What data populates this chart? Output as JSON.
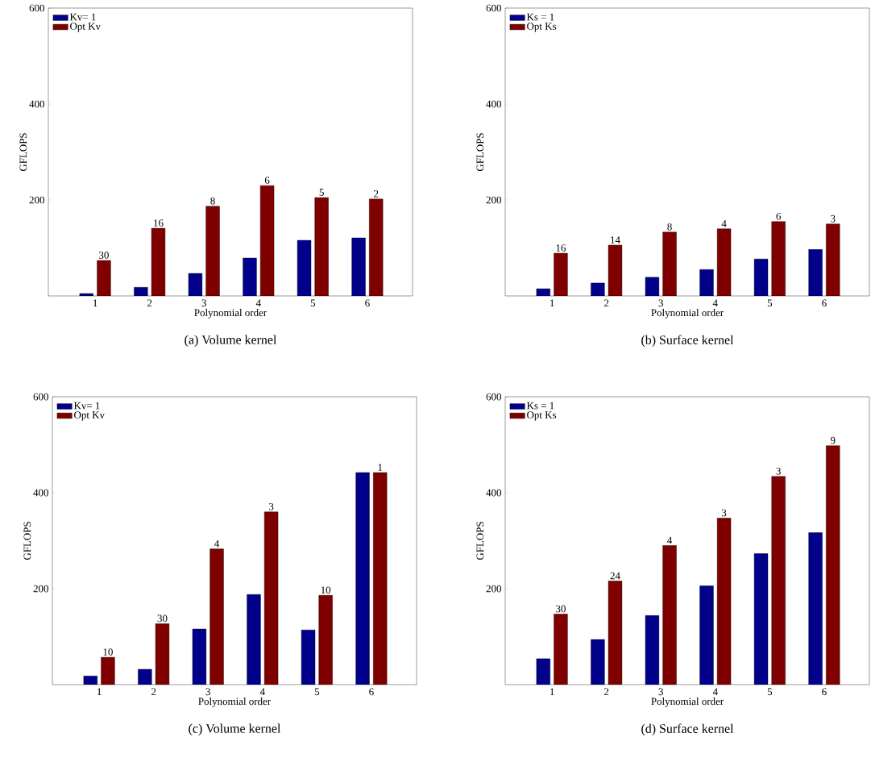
{
  "chart_data": [
    {
      "type": "bar",
      "title": "(a)  Volume kernel",
      "xlabel": "Polynomial order",
      "ylabel": "GFLOPS",
      "categories": [
        "1",
        "2",
        "3",
        "4",
        "5",
        "6"
      ],
      "ylim": [
        0,
        600
      ],
      "yticks": [
        200,
        400,
        600
      ],
      "legend": "top left",
      "series": [
        {
          "name": "Kv= 1",
          "color": "#00008b",
          "values": [
            5,
            18,
            47,
            79,
            116,
            121
          ]
        },
        {
          "name": "Opt Kv",
          "color": "#800000",
          "values": [
            74,
            141,
            187,
            230,
            205,
            202
          ]
        }
      ],
      "annotations": [
        {
          "text": "30",
          "x": "1",
          "y": 74
        },
        {
          "text": "16",
          "x": "2",
          "y": 141
        },
        {
          "text": "8",
          "x": "3",
          "y": 187
        },
        {
          "text": "6",
          "x": "4",
          "y": 230
        },
        {
          "text": "5",
          "x": "5",
          "y": 205
        },
        {
          "text": "2",
          "x": "6",
          "y": 202
        }
      ]
    },
    {
      "type": "bar",
      "title": "(b)  Surface kernel",
      "xlabel": "Polynomial order",
      "ylabel": "GFLOPS",
      "categories": [
        "1",
        "2",
        "3",
        "4",
        "5",
        "6"
      ],
      "ylim": [
        0,
        600
      ],
      "yticks": [
        200,
        400,
        600
      ],
      "legend": "top left",
      "series": [
        {
          "name": "Ks = 1",
          "color": "#00008b",
          "values": [
            15,
            27,
            39,
            55,
            77,
            97
          ]
        },
        {
          "name": "Opt Ks",
          "color": "#800000",
          "values": [
            89,
            106,
            133,
            140,
            155,
            150
          ]
        }
      ],
      "annotations": [
        {
          "text": "16",
          "x": "1",
          "y": 89
        },
        {
          "text": "14",
          "x": "2",
          "y": 106
        },
        {
          "text": "8",
          "x": "3",
          "y": 133
        },
        {
          "text": "4",
          "x": "4",
          "y": 140
        },
        {
          "text": "6",
          "x": "5",
          "y": 155
        },
        {
          "text": "3",
          "x": "6",
          "y": 150
        }
      ]
    },
    {
      "type": "bar",
      "title": "(c)  Volume kernel",
      "xlabel": "Polynomial order",
      "ylabel": "GFLOPS",
      "categories": [
        "1",
        "2",
        "3",
        "4",
        "5",
        "6"
      ],
      "ylim": [
        0,
        600
      ],
      "yticks": [
        200,
        400,
        600
      ],
      "legend": "top left",
      "series": [
        {
          "name": "Kv= 1",
          "color": "#00008b",
          "values": [
            18,
            32,
            116,
            188,
            114,
            442
          ]
        },
        {
          "name": "Opt Kv",
          "color": "#800000",
          "values": [
            57,
            127,
            283,
            360,
            186,
            442
          ]
        }
      ],
      "annotations": [
        {
          "text": "10",
          "x": "1",
          "y": 57
        },
        {
          "text": "30",
          "x": "2",
          "y": 127
        },
        {
          "text": "4",
          "x": "3",
          "y": 283
        },
        {
          "text": "3",
          "x": "4",
          "y": 360
        },
        {
          "text": "10",
          "x": "5",
          "y": 186
        },
        {
          "text": "1",
          "x": "6",
          "y": 442
        }
      ]
    },
    {
      "type": "bar",
      "title": "(d)  Surface kernel",
      "xlabel": "Polynomial order",
      "ylabel": "GFLOPS",
      "categories": [
        "1",
        "2",
        "3",
        "4",
        "5",
        "6"
      ],
      "ylim": [
        0,
        600
      ],
      "yticks": [
        200,
        400,
        600
      ],
      "legend": "top left",
      "series": [
        {
          "name": "Ks = 1",
          "color": "#00008b",
          "values": [
            54,
            94,
            144,
            206,
            273,
            317
          ]
        },
        {
          "name": "Opt Ks",
          "color": "#800000",
          "values": [
            147,
            216,
            290,
            347,
            434,
            498
          ]
        }
      ],
      "annotations": [
        {
          "text": "30",
          "x": "1",
          "y": 147
        },
        {
          "text": "24",
          "x": "2",
          "y": 216
        },
        {
          "text": "4",
          "x": "3",
          "y": 290
        },
        {
          "text": "3",
          "x": "4",
          "y": 347
        },
        {
          "text": "3",
          "x": "5",
          "y": 434
        },
        {
          "text": "9",
          "x": "6",
          "y": 498
        }
      ]
    }
  ]
}
